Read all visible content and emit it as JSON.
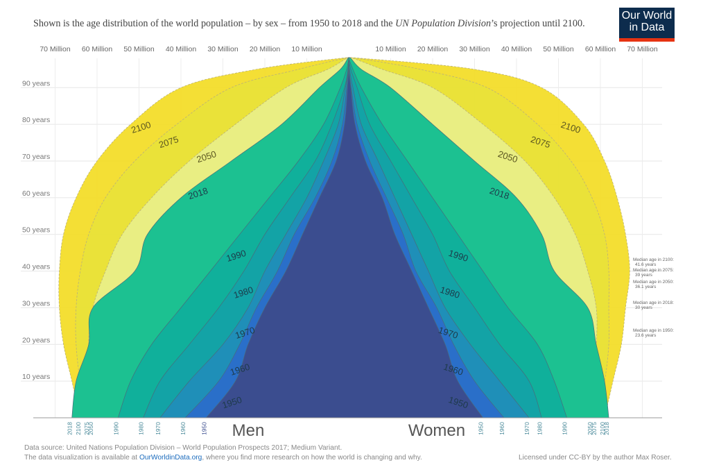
{
  "header": {
    "subtitle_pre": "Shown is the age distribution of the world population – by sex – from 1950 to 2018 and the ",
    "subtitle_em": "UN Population Division",
    "subtitle_post": "’s projection until 2100.",
    "logo_line1": "Our World",
    "logo_line2": "in Data"
  },
  "footer": {
    "source": "Data source: United Nations Population Division – World Population Prospects 2017; Medium Variant.",
    "avail_pre": "The data visualization is available at ",
    "avail_link": "OurWorldinData.org",
    "avail_post": ", where you find more research on how the world is changing and why.",
    "license": "Licensed under CC-BY by the author Max Roser."
  },
  "chart_data": {
    "type": "area",
    "x_tick_labels": [
      "10 Million",
      "20 Million",
      "30 Million",
      "40 Million",
      "50 Million",
      "60 Million",
      "70 Million"
    ],
    "x_ticks_million": [
      10,
      20,
      30,
      40,
      50,
      60,
      70
    ],
    "xlim_million": [
      0,
      72
    ],
    "y_tick_labels": [
      "10 years",
      "20 years",
      "30 years",
      "40 years",
      "50 years",
      "60 years",
      "70 years",
      "80 years",
      "90 years"
    ],
    "y_ticks": [
      10,
      20,
      30,
      40,
      50,
      60,
      70,
      80,
      90
    ],
    "ylim": [
      0,
      98
    ],
    "men_label": "Men",
    "women_label": "Women",
    "colors": {
      "1950": "#3b4d8f",
      "1960": "#2a6fc9",
      "1970": "#1f8fb8",
      "1980": "#13a3a6",
      "1990": "#10b09b",
      "2018": "#1cc191",
      "2050": "#e8ef8a",
      "2075": "#e8e23a",
      "2100": "#f3dc24"
    },
    "series": [
      {
        "name": "2100",
        "men_million": [
          64,
          66,
          68,
          69,
          69,
          68,
          65,
          60,
          52,
          40,
          22,
          2
        ],
        "women_million": [
          61,
          63,
          65,
          66,
          67,
          66,
          64,
          61,
          56,
          46,
          30,
          3
        ]
      },
      {
        "name": "2075",
        "men_million": [
          62,
          64,
          65,
          65,
          64,
          62,
          58,
          51,
          41,
          28,
          12,
          1
        ],
        "women_million": [
          59,
          61,
          62,
          62,
          62,
          61,
          58,
          53,
          45,
          33,
          17,
          2
        ]
      },
      {
        "name": "2050",
        "men_million": [
          61,
          61,
          62,
          61,
          58,
          54,
          47,
          38,
          27,
          15,
          5,
          0.5
        ],
        "women_million": [
          58,
          58,
          59,
          59,
          57,
          54,
          49,
          42,
          32,
          20,
          8,
          1
        ]
      },
      {
        "name": "2018",
        "men_million": [
          66,
          65,
          62,
          61,
          51,
          48,
          40,
          28,
          16,
          7,
          2,
          0.2
        ],
        "women_million": [
          62,
          61,
          59,
          57,
          49,
          46,
          40,
          30,
          20,
          10,
          3,
          0.5
        ]
      },
      {
        "name": "1990",
        "men_million": [
          55,
          52,
          47,
          40,
          33,
          26,
          19,
          12,
          6,
          2,
          0.5,
          0
        ],
        "women_million": [
          52,
          49,
          45,
          38,
          32,
          26,
          20,
          14,
          8,
          3,
          1,
          0
        ]
      },
      {
        "name": "1980",
        "men_million": [
          49,
          45,
          38,
          31,
          25,
          20,
          14,
          8,
          4,
          1,
          0.2,
          0
        ],
        "women_million": [
          46,
          43,
          36,
          30,
          24,
          20,
          15,
          10,
          5,
          2,
          0.5,
          0
        ]
      },
      {
        "name": "1970",
        "men_million": [
          45,
          38,
          30,
          24,
          20,
          15,
          10,
          6,
          2.5,
          0.8,
          0.1,
          0
        ],
        "women_million": [
          43,
          36,
          29,
          23,
          19,
          15,
          11,
          7,
          3,
          1,
          0.2,
          0
        ]
      },
      {
        "name": "1960",
        "men_million": [
          39,
          31,
          26,
          22,
          17,
          13,
          8,
          4,
          1.5,
          0.5,
          0.1,
          0
        ],
        "women_million": [
          37,
          30,
          25,
          21,
          16,
          13,
          9,
          5,
          2,
          0.6,
          0.1,
          0
        ]
      },
      {
        "name": "1950",
        "men_million": [
          34,
          27,
          24,
          20,
          15,
          11,
          7,
          3,
          1,
          0.3,
          0,
          0
        ],
        "women_million": [
          32,
          26,
          23,
          19,
          15,
          11,
          8,
          4,
          1.5,
          0.5,
          0,
          0
        ]
      }
    ],
    "ages": [
      0,
      10,
      20,
      30,
      40,
      50,
      60,
      70,
      80,
      90,
      95,
      98
    ],
    "label_ages": {
      "1950": 3,
      "1960": 12,
      "1970": 22,
      "1980": 33,
      "1990": 43,
      "2018": 60,
      "2050": 70,
      "2075": 74,
      "2100": 78
    },
    "median_labels": [
      {
        "line1": "Median age in 2100:",
        "line2": "41.6 years",
        "age": 41.6
      },
      {
        "line1": "Median age in 2075:",
        "line2": "39 years",
        "age": 39
      },
      {
        "line1": "Median age in 2050:",
        "line2": "36.1 years",
        "age": 36.1
      },
      {
        "line1": "Median age in 2018:",
        "line2": "30 years",
        "age": 30
      },
      {
        "line1": "Median age in 1950:",
        "line2": "23.6 years",
        "age": 23.6
      }
    ],
    "bottom_year_labels_men": [
      "2050",
      "2075",
      "2100",
      "1990",
      "2018",
      "1980",
      "1970",
      "1960",
      "1950"
    ],
    "bottom_year_labels_women": [
      "1950",
      "1960",
      "1970",
      "1980",
      "1990",
      "2018",
      "2050",
      "2075",
      "2100"
    ]
  }
}
